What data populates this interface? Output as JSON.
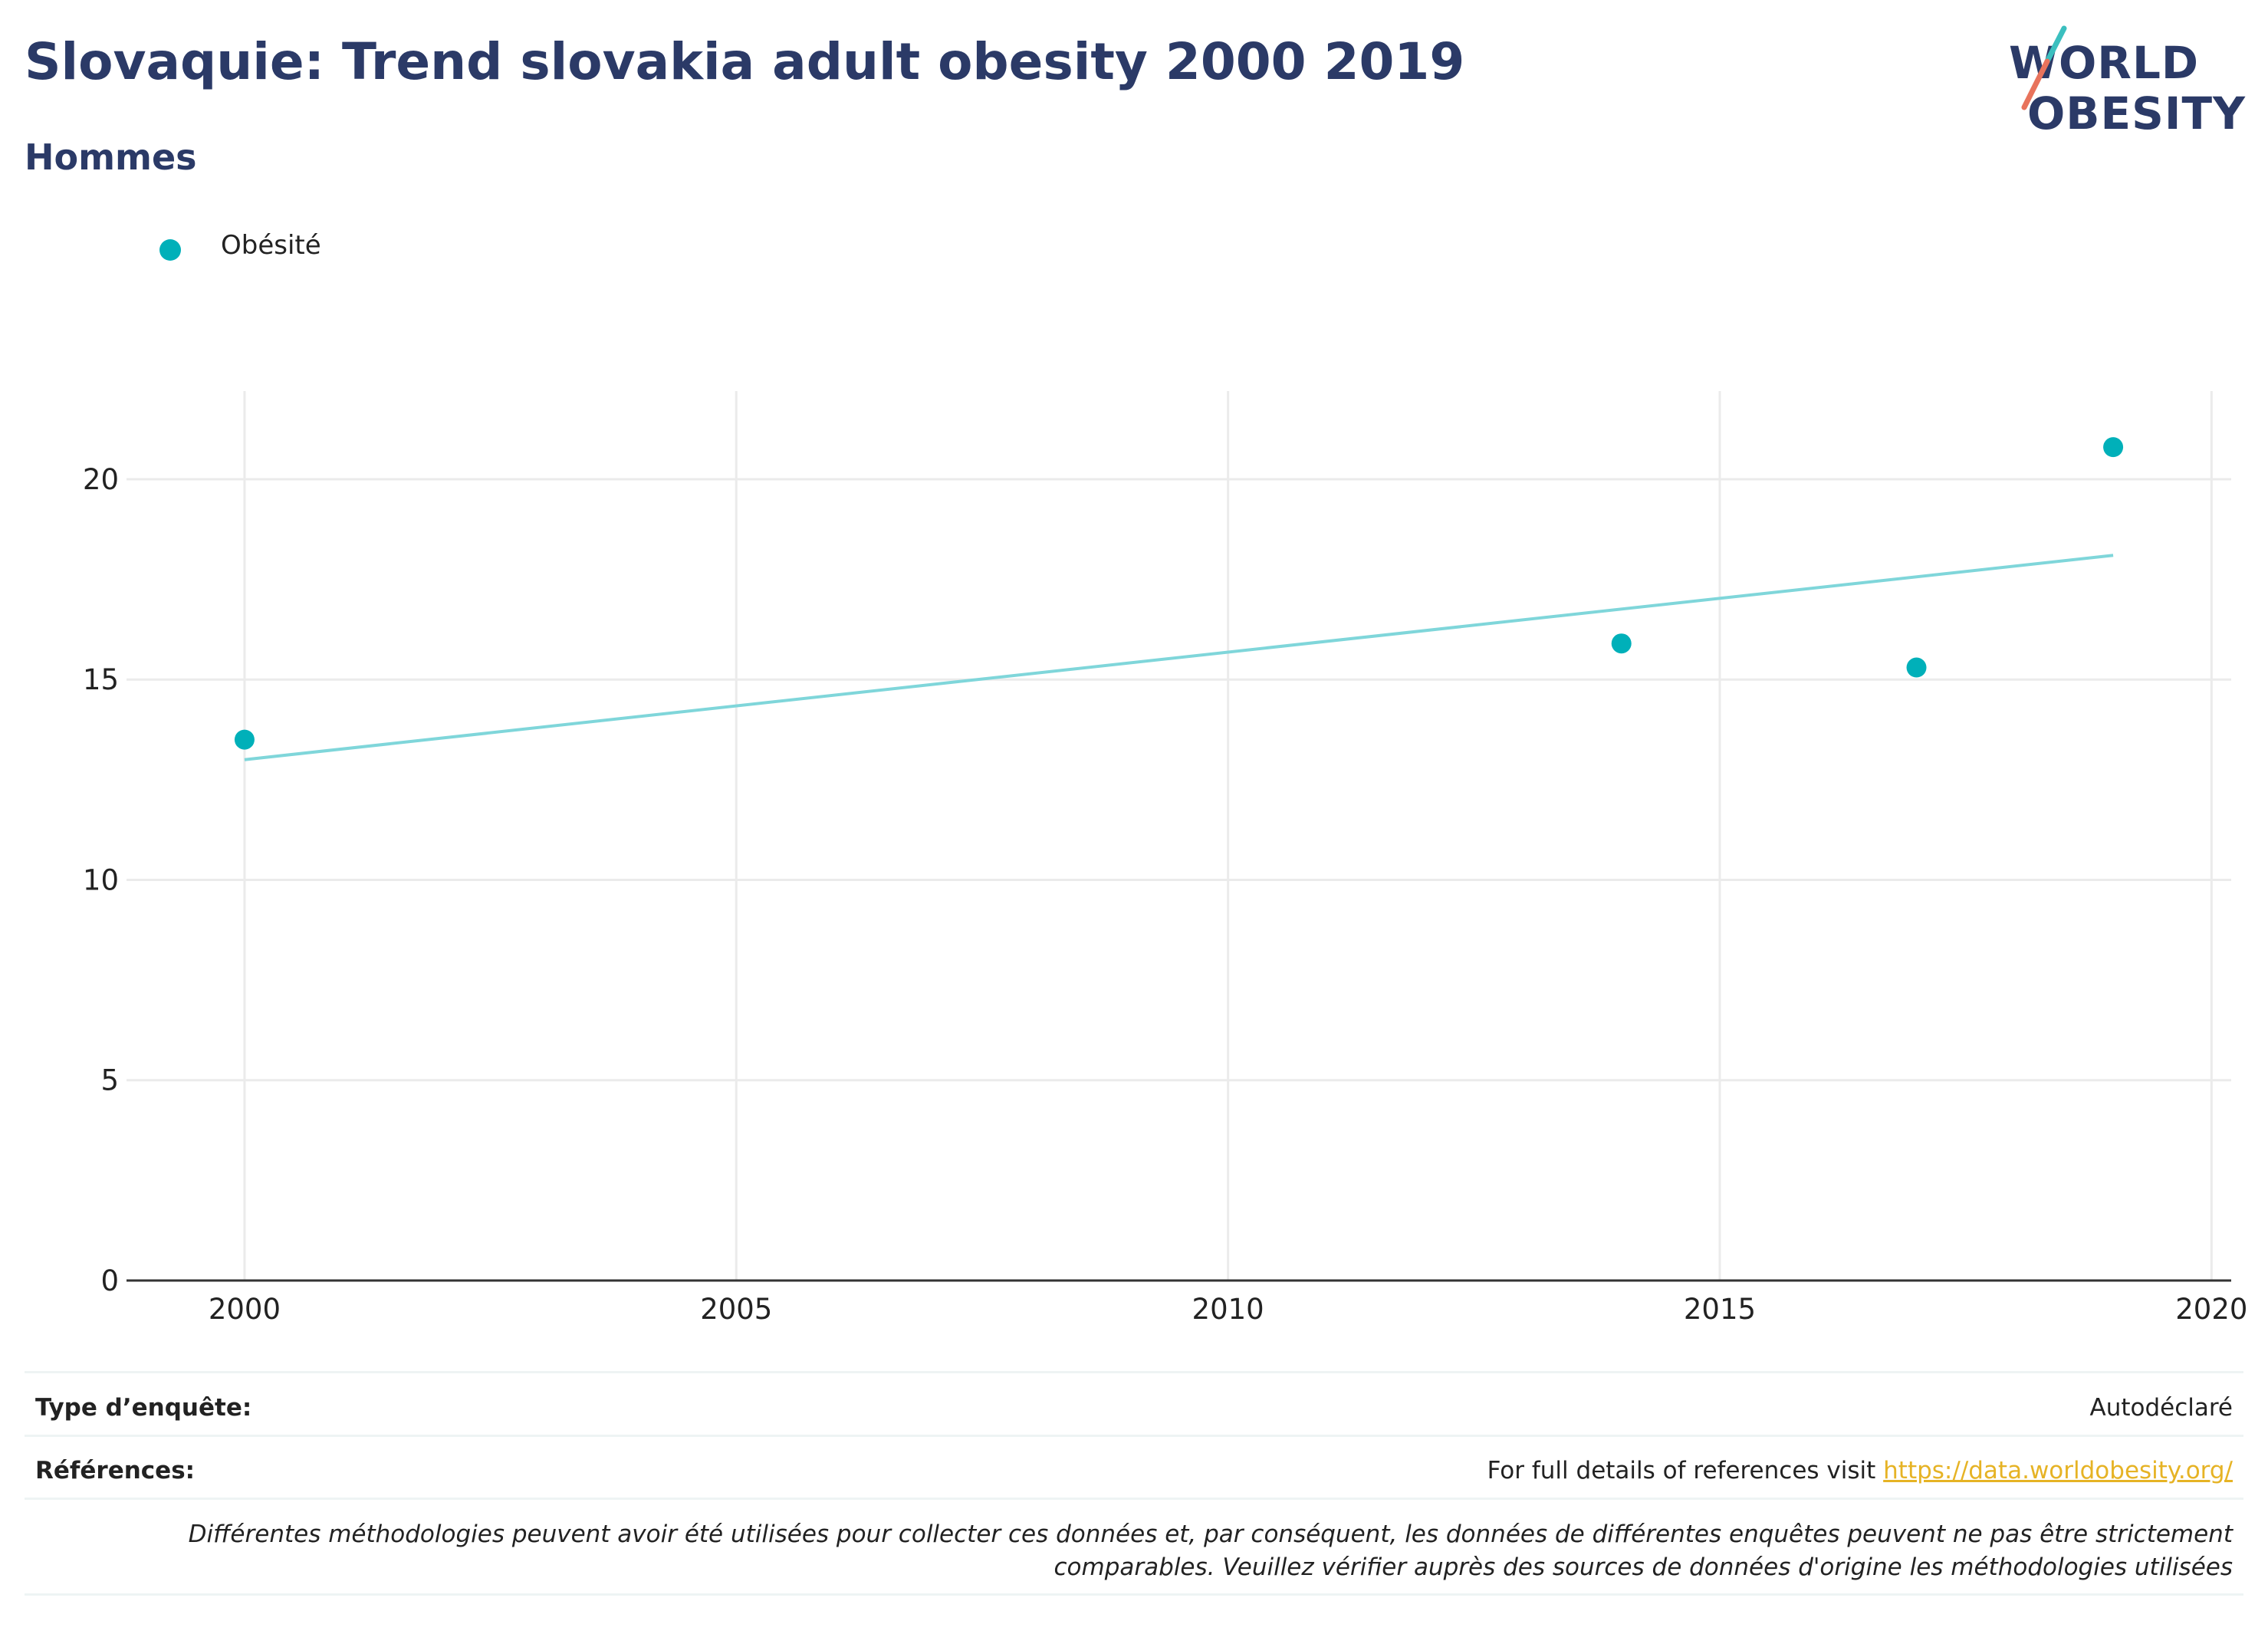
{
  "header": {
    "title": "Slovaquie: Trend slovakia adult obesity 2000 2019",
    "subtitle": "Hommes"
  },
  "logo": {
    "line1": "WORLD",
    "line2": "OBESITY",
    "slash_top_color": "#3bbfbf",
    "slash_bottom_color": "#e8735c"
  },
  "legend": {
    "label": "Obésité",
    "color": "#00b0b9"
  },
  "chart_data": {
    "type": "scatter",
    "series": [
      {
        "name": "Obésité",
        "color": "#00b0b9",
        "x": [
          2000,
          2014,
          2017,
          2019
        ],
        "y": [
          13.5,
          15.9,
          15.3,
          20.8
        ]
      }
    ],
    "trendline": {
      "color": "#7fd6da",
      "x": [
        2000,
        2019
      ],
      "y": [
        13.0,
        18.1
      ]
    },
    "xlim": [
      1998.8,
      2020.2
    ],
    "ylim": [
      0,
      22.2
    ],
    "x_ticks": [
      "2000",
      "2005",
      "2010",
      "2015",
      "2020"
    ],
    "y_ticks": [
      "0",
      "5",
      "10",
      "15",
      "20"
    ],
    "grid": true,
    "legend_position": "top-left",
    "xlabel": "",
    "ylabel": ""
  },
  "footer": {
    "survey_type_label": "Type d’enquête:",
    "survey_type_value": "Autodéclaré",
    "references_label": "Références:",
    "references_text": "For full details of references visit ",
    "references_link": "https://data.worldobesity.org/",
    "note_line1": "Différentes méthodologies peuvent avoir été utilisées pour collecter ces données et, par conséquent, les données de différentes enquêtes peuvent ne pas être strictement",
    "note_line2": "comparables. Veuillez vérifier auprès des sources de données d'origine les méthodologies utilisées"
  }
}
